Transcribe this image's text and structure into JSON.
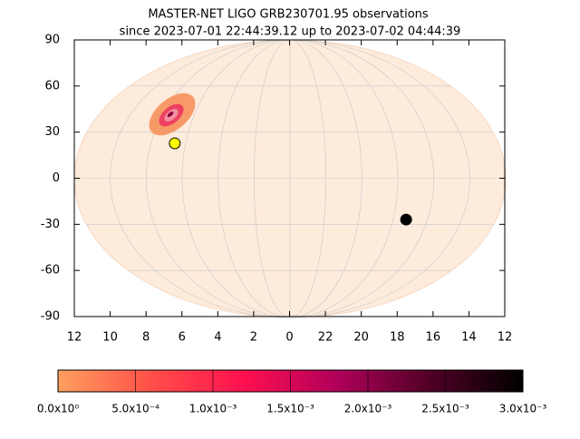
{
  "chart_data": {
    "type": "scatter",
    "title": "MASTER-NET LIGO GRB230701.95 observations",
    "subtitle": "since 2023-07-01 22:44:39.12 up to 2023-07-02 04:44:39",
    "xlim": [
      12,
      -12
    ],
    "xticks": [
      12,
      10,
      8,
      6,
      4,
      2,
      0,
      {
        "value": -2,
        "label": "22"
      },
      {
        "value": -4,
        "label": "20"
      },
      {
        "value": -6,
        "label": "18"
      },
      {
        "value": -8,
        "label": "16"
      },
      {
        "value": -10,
        "label": "14"
      },
      {
        "value": -12,
        "label": "12"
      }
    ],
    "ylim": [
      -90,
      90
    ],
    "yticks": [
      -90,
      -60,
      -30,
      0,
      30,
      60,
      90
    ],
    "grid": true,
    "series": [
      {
        "color": "#ffff00",
        "x": [
          6.4
        ],
        "values": [
          22.7
        ]
      },
      {
        "color": "#000000",
        "x": [
          -6.5
        ],
        "values": [
          -26.9
        ]
      }
    ],
    "colorbar": {
      "clim": [
        0,
        0.003
      ],
      "colormap": [
        "#ffa060",
        "#ff5048",
        "#ff1050",
        "#b0005a",
        "#500025",
        "#000000"
      ],
      "ticks": [
        {
          "value": 0,
          "label": "0.0x10⁰"
        },
        {
          "value": 0.0005,
          "label": "5.0x10⁻⁴"
        },
        {
          "value": 0.001,
          "label": "1.0x10⁻³"
        },
        {
          "value": 0.0015,
          "label": "1.5x10⁻³"
        },
        {
          "value": 0.002,
          "label": "2.0x10⁻³"
        },
        {
          "value": 0.0025,
          "label": "2.5x10⁻³"
        },
        {
          "value": 0.003,
          "label": "3.0x10⁻³"
        }
      ]
    }
  }
}
